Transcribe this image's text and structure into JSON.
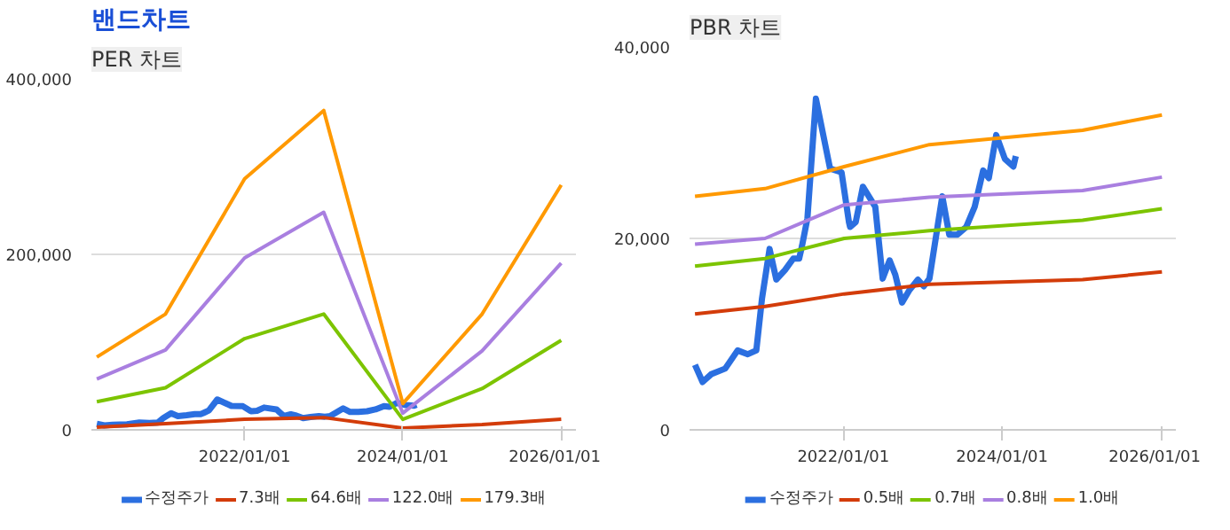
{
  "chart_data": [
    {
      "type": "line",
      "title": "PER 차트",
      "annotations": [
        "밴드차트"
      ],
      "xlim": [
        "2020-01-25",
        "2026-03-10"
      ],
      "ylim": [
        0,
        400000
      ],
      "xticks": [
        {
          "value": "2022-01-01",
          "label": "2022/01/01"
        },
        {
          "value": "2024-01-01",
          "label": "2024/01/01"
        },
        {
          "value": "2026-01-01",
          "label": "2026/01/01"
        }
      ],
      "yticks": [
        {
          "value": 0,
          "label": "0"
        },
        {
          "value": 200000,
          "label": "200,000"
        },
        {
          "value": 400000,
          "label": "400,000"
        }
      ],
      "grid": "y",
      "legend": "bottom",
      "marker": "none",
      "line_style": "solid",
      "x": [
        "2020-02-19",
        "2021-01-01",
        "2022-01-01",
        "2023-01-01",
        "2024-01-01",
        "2025-01-01",
        "2026-01-01"
      ],
      "series": [
        {
          "name": "수정주가",
          "color": "#2b6fe0",
          "x": [
            "2020-02-19",
            "2020-03-25",
            "2020-05-03",
            "2020-07-07",
            "2020-09-02",
            "2020-10-19",
            "2020-11-27",
            "2020-12-23",
            "2021-01-27",
            "2021-02-27",
            "2021-04-08",
            "2021-05-16",
            "2021-06-12",
            "2021-06-25",
            "2021-07-20",
            "2021-08-28",
            "2021-11-01",
            "2021-12-24",
            "2022-01-27",
            "2022-02-01",
            "2022-02-27",
            "2022-04-01",
            "2022-05-28",
            "2022-06-10",
            "2022-07-01",
            "2022-08-02",
            "2022-08-28",
            "2022-09-28",
            "2022-11-01",
            "2022-12-10",
            "2023-01-06",
            "2023-02-01",
            "2023-04-01",
            "2023-05-03",
            "2023-06-10",
            "2023-07-20",
            "2023-08-28",
            "2023-10-06",
            "2023-11-01",
            "2023-12-05",
            "2024-01-14",
            "2024-02-22",
            "2024-03-04"
          ],
          "values": [
            6800,
            5000,
            5800,
            6400,
            8300,
            7900,
            8300,
            13700,
            18900,
            15700,
            16700,
            17900,
            17900,
            19200,
            22100,
            34600,
            27300,
            26900,
            21700,
            21200,
            21700,
            25400,
            23300,
            20400,
            15800,
            17700,
            16200,
            13300,
            14600,
            15700,
            15000,
            15800,
            24400,
            20400,
            20400,
            21200,
            23300,
            27100,
            26300,
            30800,
            28300,
            27500,
            28600
          ]
        },
        {
          "name": "7.3배",
          "color": "#d33c0a",
          "values": [
            3000,
            7000,
            12000,
            14000,
            2000,
            6000,
            12000
          ]
        },
        {
          "name": "64.6배",
          "color": "#7cc400",
          "values": [
            32000,
            48000,
            104000,
            132000,
            12000,
            47000,
            102000
          ]
        },
        {
          "name": "122.0배",
          "color": "#a97fe0",
          "values": [
            58000,
            91000,
            196000,
            248000,
            19000,
            90000,
            190000
          ]
        },
        {
          "name": "179.3배",
          "color": "#ff9900",
          "values": [
            83000,
            132000,
            286000,
            364000,
            30000,
            132000,
            279000
          ]
        }
      ]
    },
    {
      "type": "line",
      "title": "PBR 차트",
      "xlim": [
        "2020-01-25",
        "2026-03-10"
      ],
      "ylim": [
        0,
        40000
      ],
      "xticks": [
        {
          "value": "2022-01-01",
          "label": "2022/01/01"
        },
        {
          "value": "2024-01-01",
          "label": "2024/01/01"
        },
        {
          "value": "2026-01-01",
          "label": "2026/01/01"
        }
      ],
      "yticks": [
        {
          "value": 0,
          "label": "0"
        },
        {
          "value": 20000,
          "label": "20,000"
        },
        {
          "value": 40000,
          "label": "40,000"
        }
      ],
      "grid": "y",
      "legend": "bottom",
      "marker": "none",
      "line_style": "solid",
      "x": [
        "2020-02-19",
        "2021-01-06",
        "2022-01-05",
        "2023-02-01",
        "2025-01-05",
        "2026-01-05"
      ],
      "series": [
        {
          "name": "수정주가",
          "color": "#2b6fe0",
          "x": [
            "2020-02-19",
            "2020-03-25",
            "2020-05-03",
            "2020-07-07",
            "2020-09-02",
            "2020-10-19",
            "2020-11-27",
            "2020-12-23",
            "2021-01-27",
            "2021-02-27",
            "2021-04-08",
            "2021-05-16",
            "2021-06-12",
            "2021-06-25",
            "2021-07-20",
            "2021-08-28",
            "2021-11-01",
            "2021-12-24",
            "2022-01-27",
            "2022-02-01",
            "2022-02-27",
            "2022-04-01",
            "2022-05-28",
            "2022-06-10",
            "2022-07-01",
            "2022-08-02",
            "2022-08-28",
            "2022-09-28",
            "2022-11-01",
            "2022-12-10",
            "2023-01-06",
            "2023-02-01",
            "2023-04-01",
            "2023-05-03",
            "2023-06-10",
            "2023-07-20",
            "2023-08-28",
            "2023-10-06",
            "2023-11-01",
            "2023-12-05",
            "2024-01-14",
            "2024-02-22",
            "2024-03-04"
          ],
          "values": [
            6800,
            5000,
            5800,
            6400,
            8300,
            7900,
            8300,
            13700,
            18900,
            15700,
            16700,
            17900,
            17900,
            19200,
            22100,
            34600,
            27300,
            26900,
            21700,
            21200,
            21700,
            25400,
            23300,
            20400,
            15800,
            17700,
            16200,
            13300,
            14600,
            15700,
            15000,
            15800,
            24400,
            20400,
            20400,
            21200,
            23300,
            27100,
            26300,
            30800,
            28300,
            27500,
            28600
          ]
        },
        {
          "name": "0.5배",
          "color": "#d33c0a",
          "values": [
            12100,
            12900,
            14200,
            15200,
            15700,
            16500
          ]
        },
        {
          "name": "0.7배",
          "color": "#7cc400",
          "values": [
            17100,
            17900,
            20000,
            20800,
            21900,
            23100
          ]
        },
        {
          "name": "0.8배",
          "color": "#a97fe0",
          "values": [
            19400,
            20000,
            23500,
            24300,
            25000,
            26400
          ]
        },
        {
          "name": "1.0배",
          "color": "#ff9900",
          "values": [
            24400,
            25200,
            27500,
            29800,
            31300,
            32900
          ]
        }
      ]
    }
  ]
}
